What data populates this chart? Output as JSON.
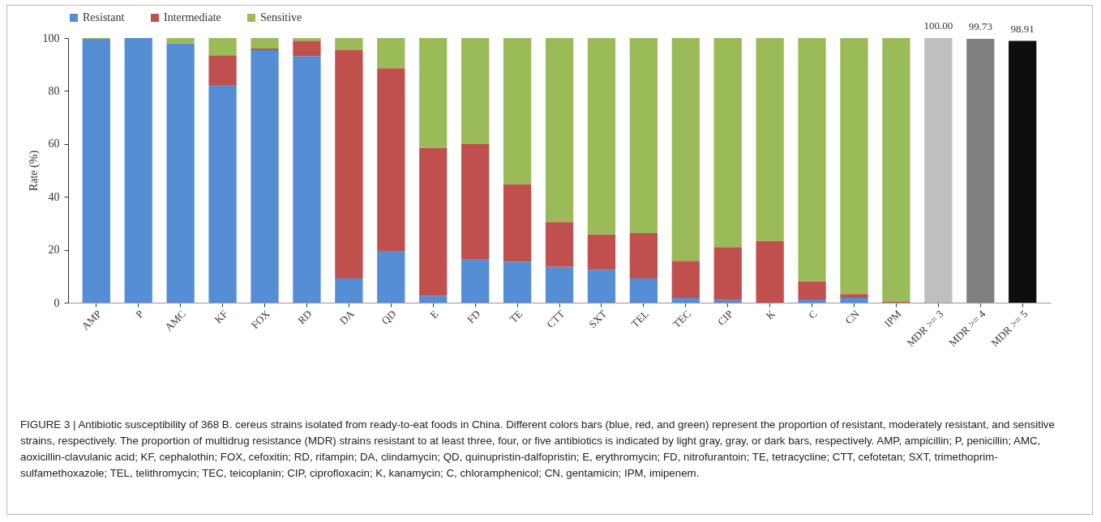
{
  "chart_data": {
    "type": "bar",
    "stacked": true,
    "ylabel": "Rate (%)",
    "ylim": [
      0,
      100
    ],
    "yticks": [
      0,
      20,
      40,
      60,
      80,
      100
    ],
    "grid": false,
    "legend": "top",
    "categories": [
      "AMP",
      "P",
      "AMC",
      "KF",
      "FOX",
      "RD",
      "DA",
      "QD",
      "E",
      "FD",
      "TE",
      "CTT",
      "SXT",
      "TEL",
      "TEC",
      "CIP",
      "K",
      "C",
      "CN",
      "IPM",
      "MDR >= 3",
      "MDR >= 4",
      "MDR >= 5"
    ],
    "series": [
      {
        "name": "Resistant",
        "color": "#558ed5",
        "values": [
          99.7,
          100,
          98,
          82.3,
          95.4,
          93.2,
          9.2,
          19.6,
          2.7,
          16.3,
          15.5,
          13.6,
          12.5,
          9.2,
          1.8,
          1,
          0,
          1.2,
          1.8,
          0,
          null,
          null,
          null
        ]
      },
      {
        "name": "Intermediate",
        "color": "#c0504d",
        "values": [
          0,
          0,
          0,
          11.2,
          0.6,
          5.8,
          86.2,
          69,
          55.9,
          43.8,
          29.3,
          16.9,
          13.3,
          17.1,
          14,
          20,
          23.4,
          6.9,
          1.5,
          0.3,
          null,
          null,
          null
        ]
      },
      {
        "name": "Sensitive",
        "color": "#9bbb59",
        "values": [
          0.3,
          0,
          2,
          6.5,
          4,
          1,
          4.6,
          11.4,
          41.4,
          39.9,
          55.2,
          69.5,
          74.2,
          73.7,
          84.2,
          79,
          76.6,
          91.9,
          96.7,
          99.7,
          null,
          null,
          null
        ]
      },
      {
        "color": "#bfbfbf",
        "values": [
          null,
          null,
          null,
          null,
          null,
          null,
          null,
          null,
          null,
          null,
          null,
          null,
          null,
          null,
          null,
          null,
          null,
          null,
          null,
          null,
          100,
          null,
          null
        ],
        "value_labels": [
          null,
          null,
          null,
          null,
          null,
          null,
          null,
          null,
          null,
          null,
          null,
          null,
          null,
          null,
          null,
          null,
          null,
          null,
          null,
          null,
          "100.00",
          null,
          null
        ]
      },
      {
        "color": "#808080",
        "values": [
          null,
          null,
          null,
          null,
          null,
          null,
          null,
          null,
          null,
          null,
          null,
          null,
          null,
          null,
          null,
          null,
          null,
          null,
          null,
          null,
          null,
          99.73,
          null
        ],
        "value_labels": [
          null,
          null,
          null,
          null,
          null,
          null,
          null,
          null,
          null,
          null,
          null,
          null,
          null,
          null,
          null,
          null,
          null,
          null,
          null,
          null,
          null,
          "99.73",
          null
        ]
      },
      {
        "color": "#0d0d0d",
        "values": [
          null,
          null,
          null,
          null,
          null,
          null,
          null,
          null,
          null,
          null,
          null,
          null,
          null,
          null,
          null,
          null,
          null,
          null,
          null,
          null,
          null,
          null,
          98.91
        ],
        "value_labels": [
          null,
          null,
          null,
          null,
          null,
          null,
          null,
          null,
          null,
          null,
          null,
          null,
          null,
          null,
          null,
          null,
          null,
          null,
          null,
          null,
          null,
          null,
          "98.91"
        ]
      }
    ],
    "annotations": [
      "FIGURE 3 | Antibiotic susceptibility of 368 B. cereus strains isolated from ready-to-eat foods in China. Different colors bars (blue, red, and green) represent the proportion of resistant, moderately resistant, and sensitive strains, respectively. The proportion of multidrug resistance (MDR) strains resistant to at least three, four, or five antibiotics is indicated by light gray, gray, or dark bars, respectively. AMP, ampicillin; P, penicillin; AMC, aoxicillin-clavulanic acid; KF, cephalothin; FOX, cefoxitin; RD, rifampin; DA, clindamycin; QD, quinupristin-dalfopristin; E, erythromycin; FD, nitrofurantoin; TE, tetracycline; CTT, cefotetan; SXT, trimethoprim-sulfamethoxazole; TEL, telithromycin; TEC, teicoplanin; CIP, ciprofloxacin; K, kanamycin; C, chloramphenicol; CN, gentamicin; IPM, imipenem."
    ]
  }
}
